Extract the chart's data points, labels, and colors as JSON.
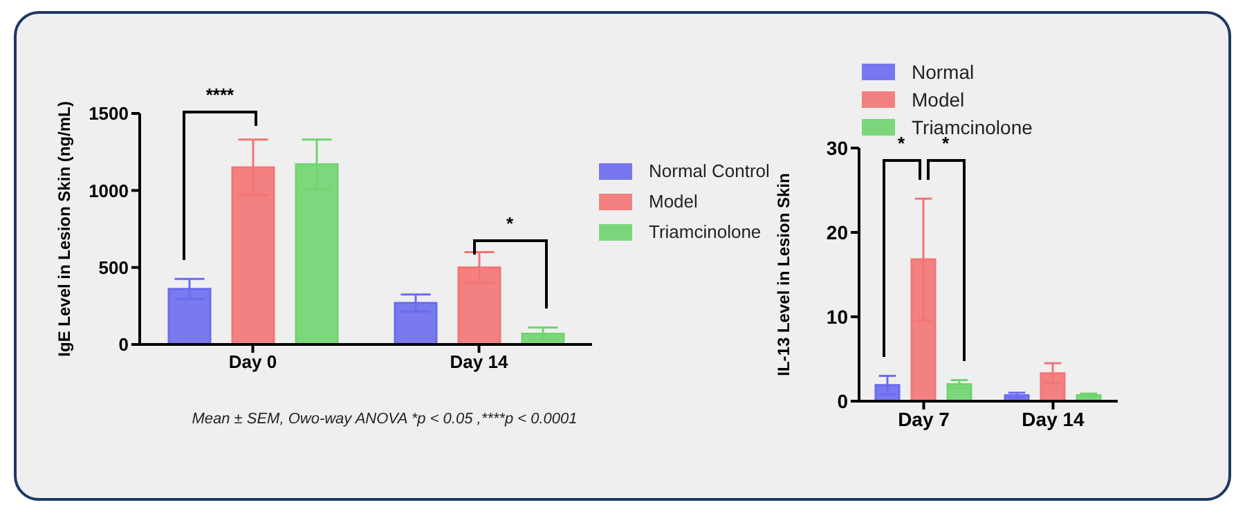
{
  "chart_data": [
    {
      "type": "bar",
      "categories": [
        "Day 0",
        "Day 14"
      ],
      "ylabel": "IgE Level in Lesion Skin (ng/mL)",
      "ylim": [
        0,
        1500
      ],
      "yticks": [
        0,
        500,
        1000,
        1500
      ],
      "legend": "right",
      "series": [
        {
          "name": "Normal Control",
          "color": "#6b6bf0",
          "values": [
            360,
            270
          ],
          "errors": [
            65,
            55
          ]
        },
        {
          "name": "Model",
          "color": "#f47474",
          "values": [
            1150,
            500
          ],
          "errors": [
            180,
            100
          ]
        },
        {
          "name": "Triamcinolone",
          "color": "#70d470",
          "values": [
            1170,
            70
          ],
          "errors": [
            160,
            40
          ]
        }
      ],
      "annotations": [
        "****",
        "*",
        "Mean ± SEM, Owo-way ANOVA *p < 0.05 ,****p < 0.0001"
      ]
    },
    {
      "type": "bar",
      "categories": [
        "Day 7",
        "Day 14"
      ],
      "ylabel": "IL-13 Level in Lesion Skin",
      "ylim": [
        0,
        30
      ],
      "yticks": [
        0,
        10,
        20,
        30
      ],
      "legend": "top left",
      "series": [
        {
          "name": "Normal",
          "color": "#6b6bf0",
          "values": [
            1.9,
            0.7
          ],
          "errors": [
            1.1,
            0.3
          ]
        },
        {
          "name": "Model",
          "color": "#f47474",
          "values": [
            16.8,
            3.3
          ],
          "errors": [
            7.2,
            1.2
          ]
        },
        {
          "name": "Triamcinolone",
          "color": "#70d470",
          "values": [
            2.0,
            0.7
          ],
          "errors": [
            0.5,
            0.2
          ]
        }
      ],
      "annotations": [
        "*",
        "*"
      ]
    }
  ]
}
